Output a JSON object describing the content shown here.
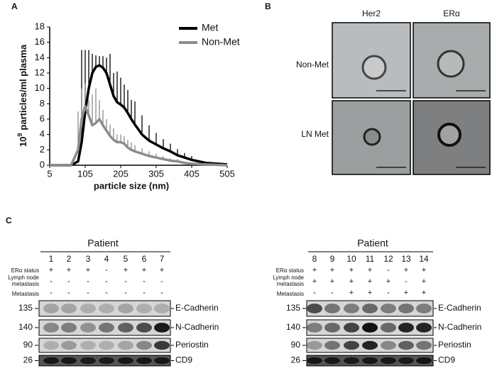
{
  "panel_labels": [
    "A",
    "B",
    "C"
  ],
  "chart_data": {
    "type": "line",
    "y_label_base": "10",
    "y_label_exp": "9",
    "y_label": "particles/ml plasma",
    "x_label": "particle size (nm)",
    "x": [
      5,
      25,
      45,
      65,
      85,
      95,
      105,
      115,
      125,
      135,
      145,
      155,
      165,
      175,
      185,
      195,
      205,
      215,
      225,
      235,
      245,
      265,
      285,
      305,
      325,
      345,
      365,
      385,
      405,
      445,
      505
    ],
    "series": [
      {
        "name": "Met",
        "color": "#000000",
        "values": [
          0,
          0,
          0,
          0,
          0.5,
          3,
          7,
          10,
          12,
          12.8,
          13,
          12.7,
          12,
          10.5,
          9,
          8.2,
          7.9,
          7.5,
          6.8,
          6,
          5.3,
          4,
          3.2,
          2.7,
          2.2,
          1.8,
          1.3,
          1,
          0.7,
          0.3,
          0.1
        ],
        "errors": [
          null,
          null,
          null,
          null,
          null,
          12,
          8,
          5,
          2.5,
          1.5,
          1.2,
          1.5,
          2,
          4,
          3,
          4,
          3.5,
          3,
          3,
          2.5,
          3,
          2.5,
          2,
          1.5,
          1.2,
          1,
          0.8,
          0.6,
          0.5,
          null,
          null
        ]
      },
      {
        "name": "Non-Met",
        "color": "#8c8c8c",
        "values": [
          0,
          0,
          0,
          0,
          2,
          6,
          7.7,
          6.5,
          5.2,
          5.5,
          6,
          5.2,
          4.5,
          3.8,
          3.3,
          3,
          3,
          2.8,
          2.3,
          2,
          1.8,
          1.5,
          1.2,
          1,
          0.8,
          0.6,
          0.5,
          0.3,
          0.2,
          0.1,
          0
        ],
        "errors": [
          null,
          null,
          null,
          null,
          5,
          4,
          3,
          2,
          4,
          4.5,
          2.5,
          2,
          1.5,
          1.5,
          1.5,
          1,
          1,
          1,
          1,
          1,
          0.8,
          0.7,
          0.6,
          0.5,
          0.4,
          0.3,
          0.3,
          null,
          null,
          null,
          null
        ]
      }
    ],
    "xlim": [
      5,
      505
    ],
    "xticks": [
      5,
      105,
      205,
      305,
      405,
      505
    ],
    "ylim": [
      0,
      18
    ],
    "yticks": [
      0,
      2,
      4,
      6,
      8,
      10,
      12,
      14,
      16,
      18
    ],
    "legend": "upper right",
    "grid": false
  },
  "panel_b": {
    "columns": [
      "Her2",
      "ERα"
    ],
    "rows": [
      "Non-Met",
      "LN Met"
    ]
  },
  "panel_c": {
    "blots": [
      {
        "title": "Patient",
        "patients": [
          "1",
          "2",
          "3",
          "4",
          "5",
          "6",
          "7"
        ],
        "status_rows": [
          {
            "label": [
              "ERα status"
            ],
            "signs": [
              "+",
              "+",
              "+",
              "-",
              "+",
              "+",
              "+"
            ]
          },
          {
            "label": [
              "Lymph node",
              "metastasis"
            ],
            "signs": [
              "-",
              "-",
              "-",
              "-",
              "-",
              "-",
              "-"
            ]
          },
          {
            "label": [
              "Metastasis"
            ],
            "signs": [
              "-",
              "-",
              "-",
              "-",
              "-",
              "-",
              "-"
            ]
          }
        ],
        "markers": [
          "135",
          "140",
          "90",
          "26"
        ],
        "proteins": [
          "E-Cadherin",
          "N-Cadherin",
          "Periostin",
          "CD9"
        ]
      },
      {
        "title": "Patient",
        "patients": [
          "8",
          "9",
          "10",
          "11",
          "12",
          "13",
          "14"
        ],
        "status_rows": [
          {
            "label": [
              "ERα status"
            ],
            "signs": [
              "+",
              "+",
              "+",
              "+",
              "-",
              "+",
              "+"
            ]
          },
          {
            "label": [
              "Lymph node",
              "metastasis"
            ],
            "signs": [
              "+",
              "+",
              "+",
              "+",
              "+",
              "-",
              "+"
            ]
          },
          {
            "label": [
              "Metastasis"
            ],
            "signs": [
              "-",
              "-",
              "+",
              "+",
              "-",
              "+",
              "+"
            ]
          }
        ],
        "markers": [
          "135",
          "140",
          "90",
          "26"
        ],
        "proteins": [
          "E-Cadherin",
          "N-Cadherin",
          "Periostin",
          "CD9"
        ]
      }
    ]
  }
}
